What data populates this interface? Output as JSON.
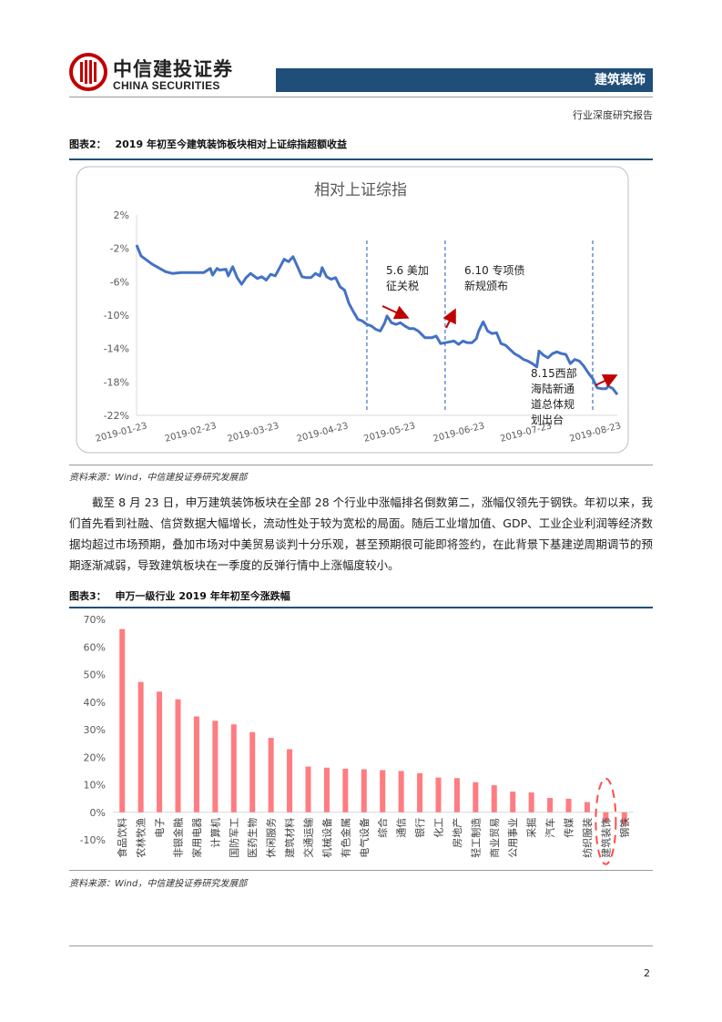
{
  "header": {
    "logo_cn": "中信建投证券",
    "logo_en": "CHINA SECURITIES",
    "section": "建筑装饰",
    "report_type": "行业深度研究报告"
  },
  "figure2": {
    "label": "图表2：",
    "title": "2019 年初至今建筑装饰板块相对上证综指超额收益",
    "source": "资料来源：Wind，中信建投证券研究发展部",
    "chart_data": {
      "type": "line",
      "title": "相对上证综指",
      "ylim": [
        -22,
        2
      ],
      "yticks": [
        "2%",
        "-2%",
        "-6%",
        "-10%",
        "-14%",
        "-18%",
        "-22%"
      ],
      "xticks": [
        "2019-01-23",
        "2019-02-23",
        "2019-03-23",
        "2019-04-23",
        "2019-05-23",
        "2019-06-23",
        "2019-07-23",
        "2019-08-23"
      ],
      "x_start": "2019-01-23",
      "x_end": "2019-08-26",
      "line_color": "#4472c4",
      "series": [
        {
          "values": [
            [
              "2019-01-23",
              -1.6
            ],
            [
              "2019-01-25",
              -2.9
            ],
            [
              "2019-01-28",
              -3.5
            ],
            [
              "2019-01-30",
              -3.9
            ],
            [
              "2019-02-01",
              -4.2
            ],
            [
              "2019-02-05",
              -4.8
            ],
            [
              "2019-02-08",
              -5.0
            ],
            [
              "2019-02-12",
              -4.9
            ],
            [
              "2019-02-18",
              -4.9
            ],
            [
              "2019-02-22",
              -4.9
            ],
            [
              "2019-02-25",
              -4.4
            ],
            [
              "2019-02-26",
              -5.2
            ],
            [
              "2019-02-28",
              -4.4
            ],
            [
              "2019-03-01",
              -4.6
            ],
            [
              "2019-03-04",
              -4.5
            ],
            [
              "2019-03-05",
              -5.3
            ],
            [
              "2019-03-07",
              -4.2
            ],
            [
              "2019-03-09",
              -5.5
            ],
            [
              "2019-03-11",
              -6.3
            ],
            [
              "2019-03-13",
              -5.5
            ],
            [
              "2019-03-15",
              -5.0
            ],
            [
              "2019-03-18",
              -5.6
            ],
            [
              "2019-03-20",
              -5.4
            ],
            [
              "2019-03-22",
              -5.8
            ],
            [
              "2019-03-24",
              -5.1
            ],
            [
              "2019-03-26",
              -5.3
            ],
            [
              "2019-03-28",
              -4.3
            ],
            [
              "2019-03-30",
              -3.3
            ],
            [
              "2019-04-01",
              -3.6
            ],
            [
              "2019-04-03",
              -3.0
            ],
            [
              "2019-04-05",
              -4.2
            ],
            [
              "2019-04-07",
              -5.4
            ],
            [
              "2019-04-09",
              -5.5
            ],
            [
              "2019-04-11",
              -5.5
            ],
            [
              "2019-04-13",
              -5.0
            ],
            [
              "2019-04-15",
              -5.3
            ],
            [
              "2019-04-16",
              -4.3
            ],
            [
              "2019-04-18",
              -5.4
            ],
            [
              "2019-04-20",
              -5.7
            ],
            [
              "2019-04-22",
              -5.5
            ],
            [
              "2019-04-24",
              -6.6
            ],
            [
              "2019-04-26",
              -7.0
            ],
            [
              "2019-04-28",
              -8.6
            ],
            [
              "2019-04-30",
              -9.6
            ],
            [
              "2019-05-02",
              -10.5
            ],
            [
              "2019-05-04",
              -10.7
            ],
            [
              "2019-05-06",
              -11.1
            ],
            [
              "2019-05-08",
              -11.3
            ],
            [
              "2019-05-10",
              -11.7
            ],
            [
              "2019-05-12",
              -11.9
            ],
            [
              "2019-05-14",
              -10.9
            ],
            [
              "2019-05-15",
              -10.1
            ],
            [
              "2019-05-17",
              -10.9
            ],
            [
              "2019-05-19",
              -11.1
            ],
            [
              "2019-05-21",
              -10.9
            ],
            [
              "2019-05-23",
              -11.3
            ],
            [
              "2019-05-25",
              -11.6
            ],
            [
              "2019-05-27",
              -11.6
            ],
            [
              "2019-05-29",
              -11.9
            ],
            [
              "2019-06-01",
              -12.7
            ],
            [
              "2019-06-04",
              -12.7
            ],
            [
              "2019-06-06",
              -12.5
            ],
            [
              "2019-06-08",
              -13.4
            ],
            [
              "2019-06-10",
              -13.3
            ],
            [
              "2019-06-12",
              -13.2
            ],
            [
              "2019-06-14",
              -13.1
            ],
            [
              "2019-06-16",
              -13.5
            ],
            [
              "2019-06-18",
              -13.1
            ],
            [
              "2019-06-20",
              -13.3
            ],
            [
              "2019-06-22",
              -13.3
            ],
            [
              "2019-06-24",
              -12.8
            ],
            [
              "2019-06-25",
              -11.9
            ],
            [
              "2019-06-27",
              -10.8
            ],
            [
              "2019-06-29",
              -11.9
            ],
            [
              "2019-07-01",
              -12.2
            ],
            [
              "2019-07-03",
              -12.1
            ],
            [
              "2019-07-05",
              -13.4
            ],
            [
              "2019-07-07",
              -13.6
            ],
            [
              "2019-07-09",
              -14.1
            ],
            [
              "2019-07-11",
              -14.6
            ],
            [
              "2019-07-13",
              -14.9
            ],
            [
              "2019-07-15",
              -15.3
            ],
            [
              "2019-07-17",
              -15.5
            ],
            [
              "2019-07-19",
              -15.8
            ],
            [
              "2019-07-21",
              -16.2
            ],
            [
              "2019-07-22",
              -14.3
            ],
            [
              "2019-07-24",
              -14.8
            ],
            [
              "2019-07-26",
              -15.1
            ],
            [
              "2019-07-28",
              -14.6
            ],
            [
              "2019-07-30",
              -14.4
            ],
            [
              "2019-08-01",
              -14.6
            ],
            [
              "2019-08-03",
              -14.7
            ],
            [
              "2019-08-05",
              -15.8
            ],
            [
              "2019-08-07",
              -15.3
            ],
            [
              "2019-08-09",
              -15.5
            ],
            [
              "2019-08-11",
              -16.1
            ],
            [
              "2019-08-13",
              -16.9
            ],
            [
              "2019-08-15",
              -17.6
            ],
            [
              "2019-08-17",
              -18.7
            ],
            [
              "2019-08-19",
              -18.8
            ],
            [
              "2019-08-21",
              -18.8
            ],
            [
              "2019-08-22",
              -18.5
            ],
            [
              "2019-08-24",
              -18.8
            ],
            [
              "2019-08-26",
              -19.5
            ]
          ]
        }
      ],
      "vlines": [
        "2019-05-06",
        "2019-06-10",
        "2019-08-15"
      ],
      "annotations": [
        {
          "text": [
            "5.6 美加",
            "征关税"
          ]
        },
        {
          "text": [
            "6.10 专项债",
            "新规颁布"
          ]
        },
        {
          "text": [
            "8.15西部",
            "海陆新通",
            "道总体规",
            "划出台"
          ]
        }
      ],
      "arrow_color": "#c00000"
    }
  },
  "body": {
    "paragraph": "截至 8 月 23 日，申万建筑装饰板块在全部 28 个行业中涨幅排名倒数第二，涨幅仅领先于钢铁。年初以来，我们首先看到社融、信贷数据大幅增长，流动性处于较为宽松的局面。随后工业增加值、GDP、工业企业利润等经济数据均超过市场预期，叠加市场对中美贸易谈判十分乐观，甚至预期很可能即将签约，在此背景下基建逆周期调节的预期逐渐减弱，导致建筑板块在一季度的反弹行情中上涨幅度较小。"
  },
  "figure3": {
    "label": "图表3：",
    "title": "申万一级行业 2019 年年初至今涨跌幅",
    "source": "资料来源：Wind，中信建投证券研究发展部",
    "chart_data": {
      "type": "bar",
      "ylim": [
        -10,
        70
      ],
      "yticks": [
        "70%",
        "60%",
        "50%",
        "40%",
        "30%",
        "20%",
        "10%",
        "0%",
        "-10%"
      ],
      "bar_color": "#ff7c80",
      "highlight_color": "#ff4d4d",
      "categories": [
        "食品饮料",
        "农林牧渔",
        "电子",
        "非银金融",
        "家用电器",
        "计算机",
        "国防军工",
        "医药生物",
        "休闲服务",
        "建筑材料",
        "交通运输",
        "机械设备",
        "有色金属",
        "电气设备",
        "综合",
        "通信",
        "银行",
        "化工",
        "房地产",
        "轻工制造",
        "商业贸易",
        "公用事业",
        "采掘",
        "汽车",
        "传媒",
        "纺织服装",
        "建筑装饰",
        "钢铁"
      ],
      "values": [
        66.5,
        47.3,
        43.8,
        41.0,
        34.8,
        33.2,
        31.9,
        29.1,
        27.0,
        22.9,
        16.6,
        16.2,
        15.8,
        15.6,
        15.3,
        15.0,
        14.2,
        12.6,
        12.4,
        10.9,
        9.8,
        7.5,
        7.2,
        5.2,
        4.9,
        3.7,
        -3.6,
        -4.4
      ],
      "highlighted": "建筑装饰"
    }
  },
  "footer": {
    "page": "2"
  }
}
